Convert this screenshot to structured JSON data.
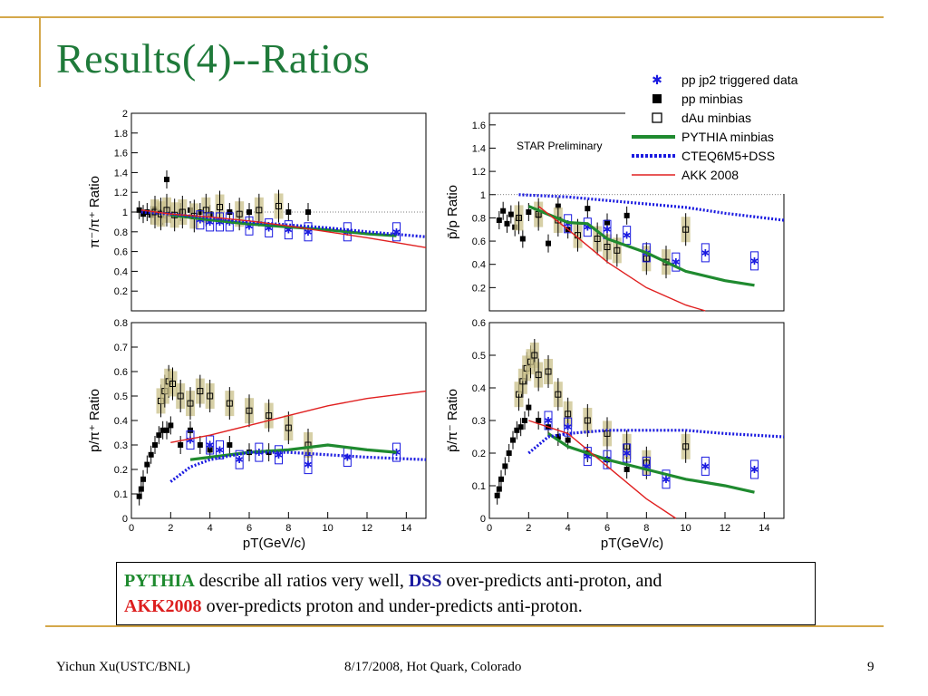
{
  "slide": {
    "title": "Results(4)--Ratios",
    "footer_left": "Yichun Xu(USTC/BNL)",
    "footer_center": "8/17/2008, Hot Quark, Colorado",
    "footer_right": "9",
    "colors": {
      "accent_line": "#d4a84b",
      "title": "#1f7a3a"
    }
  },
  "legend": {
    "items": [
      {
        "label": "pp jp2 triggered data",
        "marker": "star",
        "color": "#1a1ae0"
      },
      {
        "label": "pp minbias",
        "marker": "filled-square",
        "color": "#000000"
      },
      {
        "label": "dAu minbias",
        "marker": "open-square",
        "color": "#000000"
      },
      {
        "label": "PYTHIA minbias",
        "marker": "line",
        "color": "#1f8a2f"
      },
      {
        "label": "CTEQ6M5+DSS",
        "marker": "dotted-line",
        "color": "#1a1ae0"
      },
      {
        "label": "AKK 2008",
        "marker": "thin-line",
        "color": "#e02020"
      }
    ],
    "star_preliminary": "STAR Preliminary"
  },
  "callout": {
    "w1": "PYTHIA",
    "t1": " describe all ratios very well, ",
    "w2": "DSS",
    "t2": " over-predicts anti-proton, and",
    "w3": "AKK2008",
    "t3": " over-predicts proton and under-predicts anti-proton."
  },
  "chart_data": [
    {
      "type": "scatter",
      "panel": "top-left",
      "ylabel": "π⁻/π⁺ Ratio",
      "xlabel": "",
      "xlim": [
        0,
        15
      ],
      "ylim": [
        0,
        2
      ],
      "xticks": [],
      "yticks": [
        "0.2",
        "0.4",
        "0.6",
        "0.8",
        "1",
        "1.2",
        "1.4",
        "1.6",
        "1.8",
        "2"
      ],
      "series": [
        {
          "name": "pp minbias",
          "x": [
            0.4,
            0.6,
            0.8,
            1.0,
            1.2,
            1.4,
            1.6,
            1.8,
            2.0,
            2.5,
            3.0,
            3.5,
            4.0,
            5.0,
            6.0,
            8.0,
            9.0
          ],
          "y": [
            1.02,
            0.98,
            1.0,
            0.97,
            1.03,
            1.0,
            0.96,
            1.33,
            0.98,
            1.0,
            1.02,
            1.0,
            0.98,
            1.0,
            1.0,
            1.0,
            1.0
          ]
        },
        {
          "name": "dAu minbias",
          "x": [
            1.2,
            1.5,
            1.8,
            2.2,
            2.6,
            3.2,
            3.8,
            4.5,
            5.5,
            6.5,
            7.5
          ],
          "y": [
            1.0,
            0.98,
            1.02,
            0.97,
            1.0,
            0.96,
            1.02,
            1.05,
            0.98,
            1.02,
            1.06
          ]
        },
        {
          "name": "pp jp2 triggered data",
          "x": [
            3.5,
            4.0,
            4.5,
            5.0,
            6.0,
            7.0,
            8.0,
            9.0,
            11.0,
            13.5
          ],
          "y": [
            0.92,
            0.9,
            0.9,
            0.9,
            0.86,
            0.84,
            0.82,
            0.8,
            0.8,
            0.8
          ]
        },
        {
          "name": "PYTHIA minbias",
          "x": [
            2,
            4,
            6,
            8,
            10,
            12,
            13.5
          ],
          "y": [
            0.97,
            0.92,
            0.88,
            0.85,
            0.82,
            0.78,
            0.76
          ]
        },
        {
          "name": "CTEQ6M5+DSS",
          "x": [
            0.5,
            2,
            4,
            6,
            8,
            10,
            12,
            15
          ],
          "y": [
            1.0,
            0.98,
            0.94,
            0.9,
            0.87,
            0.84,
            0.8,
            0.75
          ]
        },
        {
          "name": "AKK 2008",
          "x": [
            0.5,
            2,
            4,
            6,
            8,
            10,
            12,
            15
          ],
          "y": [
            1.02,
            0.98,
            0.95,
            0.91,
            0.86,
            0.8,
            0.74,
            0.64
          ]
        }
      ]
    },
    {
      "type": "scatter",
      "panel": "top-right",
      "ylabel": "p̄/p Ratio",
      "xlabel": "",
      "xlim": [
        0,
        15
      ],
      "ylim": [
        0,
        1.7
      ],
      "xticks": [],
      "yticks": [
        "0.2",
        "0.4",
        "0.6",
        "0.8",
        "1",
        "1.2",
        "1.4",
        "1.6"
      ],
      "series": [
        {
          "name": "pp minbias",
          "x": [
            0.5,
            0.7,
            0.9,
            1.1,
            1.3,
            1.5,
            1.7,
            2.0,
            2.5,
            3.0,
            3.5,
            4.0,
            5.0,
            6.0,
            7.0
          ],
          "y": [
            0.78,
            0.86,
            0.75,
            0.83,
            0.72,
            0.8,
            0.62,
            0.85,
            0.82,
            0.58,
            0.9,
            0.7,
            0.88,
            0.76,
            0.82
          ]
        },
        {
          "name": "dAu minbias",
          "x": [
            1.5,
            2.5,
            3.5,
            4.5,
            5.5,
            6.0,
            6.5,
            8.0,
            9.0,
            10.0
          ],
          "y": [
            0.8,
            0.83,
            0.78,
            0.65,
            0.62,
            0.55,
            0.52,
            0.45,
            0.42,
            0.7
          ]
        },
        {
          "name": "pp jp2 triggered data",
          "x": [
            4.0,
            5.0,
            6.0,
            7.0,
            8.0,
            9.5,
            11.0,
            13.5
          ],
          "y": [
            0.75,
            0.72,
            0.7,
            0.65,
            0.5,
            0.42,
            0.5,
            0.43
          ]
        },
        {
          "name": "PYTHIA minbias",
          "x": [
            2,
            4,
            5,
            6,
            8,
            10,
            12,
            13.5
          ],
          "y": [
            0.9,
            0.76,
            0.75,
            0.62,
            0.5,
            0.34,
            0.26,
            0.22
          ]
        },
        {
          "name": "CTEQ6M5+DSS",
          "x": [
            1.5,
            4,
            6,
            8,
            10,
            12,
            15
          ],
          "y": [
            1.0,
            0.98,
            0.95,
            0.92,
            0.89,
            0.84,
            0.78
          ]
        },
        {
          "name": "AKK 2008",
          "x": [
            2.5,
            4,
            6,
            8,
            10,
            11
          ],
          "y": [
            0.9,
            0.7,
            0.42,
            0.2,
            0.05,
            0.0
          ]
        }
      ]
    },
    {
      "type": "scatter",
      "panel": "bottom-left",
      "ylabel": "p/π⁺ Ratio",
      "xlabel": "pT(GeV/c)",
      "xlim": [
        0,
        15
      ],
      "ylim": [
        0,
        0.8
      ],
      "xticks": [
        "0",
        "2",
        "4",
        "6",
        "8",
        "10",
        "12",
        "14"
      ],
      "yticks": [
        "0",
        "0.1",
        "0.2",
        "0.3",
        "0.4",
        "0.5",
        "0.6",
        "0.7",
        "0.8"
      ],
      "series": [
        {
          "name": "pp minbias",
          "x": [
            0.4,
            0.5,
            0.6,
            0.8,
            1.0,
            1.2,
            1.4,
            1.6,
            1.8,
            2.0,
            2.5,
            3.0,
            3.5,
            4.0,
            5.0,
            6.0,
            7.0
          ],
          "y": [
            0.09,
            0.12,
            0.16,
            0.22,
            0.26,
            0.3,
            0.34,
            0.36,
            0.36,
            0.38,
            0.3,
            0.36,
            0.3,
            0.28,
            0.3,
            0.27,
            0.27
          ]
        },
        {
          "name": "dAu minbias",
          "x": [
            1.5,
            1.7,
            1.9,
            2.1,
            2.5,
            3.0,
            3.5,
            4.0,
            5.0,
            6.0,
            7.0,
            8.0,
            9.0
          ],
          "y": [
            0.48,
            0.52,
            0.56,
            0.55,
            0.5,
            0.47,
            0.52,
            0.5,
            0.47,
            0.44,
            0.42,
            0.37,
            0.3
          ]
        },
        {
          "name": "pp jp2 triggered data",
          "x": [
            3.0,
            4.0,
            4.5,
            5.5,
            6.5,
            7.5,
            9.0,
            11.0,
            13.5
          ],
          "y": [
            0.32,
            0.3,
            0.28,
            0.24,
            0.27,
            0.26,
            0.22,
            0.25,
            0.27
          ]
        },
        {
          "name": "PYTHIA minbias",
          "x": [
            3,
            4,
            6,
            8,
            10,
            12,
            13.5
          ],
          "y": [
            0.24,
            0.25,
            0.27,
            0.28,
            0.3,
            0.28,
            0.27
          ]
        },
        {
          "name": "CTEQ6M5+DSS",
          "x": [
            2,
            3,
            4,
            6,
            8,
            10,
            12,
            15
          ],
          "y": [
            0.15,
            0.21,
            0.24,
            0.27,
            0.27,
            0.26,
            0.25,
            0.24
          ]
        },
        {
          "name": "AKK 2008",
          "x": [
            2,
            4,
            6,
            8,
            10,
            12,
            15
          ],
          "y": [
            0.31,
            0.34,
            0.38,
            0.42,
            0.46,
            0.49,
            0.52
          ]
        }
      ]
    },
    {
      "type": "scatter",
      "panel": "bottom-right",
      "ylabel": "p̄/π⁻ Ratio",
      "xlabel": "pT(GeV/c)",
      "xlim": [
        0,
        15
      ],
      "ylim": [
        0,
        0.6
      ],
      "xticks": [
        "0",
        "2",
        "4",
        "6",
        "8",
        "10",
        "12",
        "14"
      ],
      "yticks": [
        "0",
        "0.1",
        "0.2",
        "0.3",
        "0.4",
        "0.5",
        "0.6"
      ],
      "series": [
        {
          "name": "pp minbias",
          "x": [
            0.4,
            0.5,
            0.6,
            0.8,
            1.0,
            1.2,
            1.4,
            1.6,
            1.8,
            2.0,
            2.5,
            3.0,
            3.5,
            4.0,
            5.0,
            6.0,
            7.0
          ],
          "y": [
            0.07,
            0.09,
            0.12,
            0.16,
            0.2,
            0.24,
            0.27,
            0.28,
            0.3,
            0.34,
            0.3,
            0.28,
            0.25,
            0.24,
            0.2,
            0.18,
            0.15
          ]
        },
        {
          "name": "dAu minbias",
          "x": [
            1.5,
            1.7,
            1.9,
            2.1,
            2.3,
            2.5,
            3.0,
            3.5,
            4.0,
            5.0,
            6.0,
            7.0,
            8.0,
            10.0
          ],
          "y": [
            0.38,
            0.42,
            0.46,
            0.48,
            0.5,
            0.44,
            0.45,
            0.38,
            0.32,
            0.3,
            0.26,
            0.22,
            0.17,
            0.22
          ]
        },
        {
          "name": "pp jp2 triggered data",
          "x": [
            3.0,
            4.0,
            5.0,
            6.0,
            7.0,
            8.0,
            9.0,
            11.0,
            13.5
          ],
          "y": [
            0.3,
            0.28,
            0.19,
            0.18,
            0.2,
            0.16,
            0.12,
            0.16,
            0.15
          ]
        },
        {
          "name": "PYTHIA minbias",
          "x": [
            3,
            4,
            6,
            8,
            10,
            12,
            13.5
          ],
          "y": [
            0.26,
            0.22,
            0.18,
            0.15,
            0.12,
            0.1,
            0.08
          ]
        },
        {
          "name": "CTEQ6M5+DSS",
          "x": [
            2,
            3,
            4,
            6,
            8,
            10,
            12,
            15
          ],
          "y": [
            0.2,
            0.25,
            0.26,
            0.27,
            0.27,
            0.27,
            0.26,
            0.25
          ]
        },
        {
          "name": "AKK 2008",
          "x": [
            2,
            4,
            6,
            8,
            9.5
          ],
          "y": [
            0.3,
            0.26,
            0.16,
            0.06,
            0.0
          ]
        }
      ]
    }
  ]
}
